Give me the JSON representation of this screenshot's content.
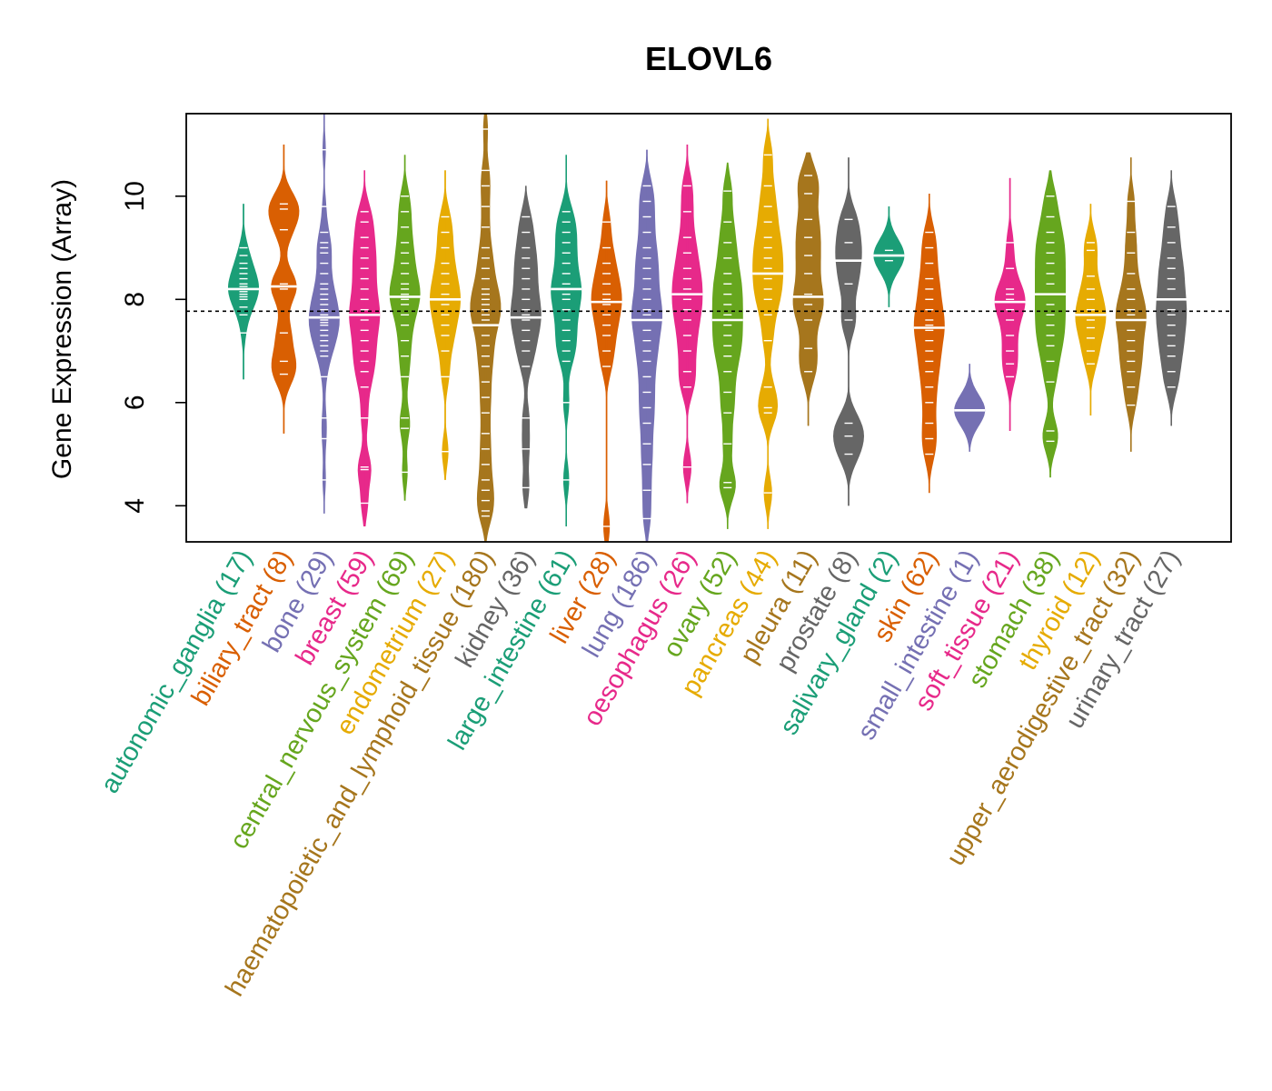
{
  "chart_data": {
    "type": "violin",
    "title": "ELOVL6",
    "ylabel": "Gene Expression (Array)",
    "xlabel": "",
    "ylim": [
      3.3,
      11.6
    ],
    "yticks": [
      4,
      6,
      8,
      10
    ],
    "reference_line": 7.77,
    "categories": [
      {
        "label": "autonomic_ganglia (17)",
        "color": "#1B9E77",
        "median": 8.2,
        "min": 6.45,
        "max": 9.85,
        "values": [
          7.35,
          7.7,
          7.85,
          8.0,
          8.05,
          8.1,
          8.15,
          8.2,
          8.2,
          8.25,
          8.3,
          8.4,
          8.5,
          8.6,
          8.7,
          8.85,
          9.0
        ]
      },
      {
        "label": "biliary_tract (8)",
        "color": "#D95F02",
        "median": 8.25,
        "min": 5.4,
        "max": 11.0,
        "values": [
          6.55,
          6.8,
          7.35,
          8.2,
          8.3,
          9.35,
          9.75,
          9.85
        ]
      },
      {
        "label": "bone (29)",
        "color": "#7570B3",
        "median": 7.65,
        "min": 3.85,
        "max": 11.6,
        "values": [
          4.5,
          5.3,
          5.7,
          6.5,
          6.9,
          7.0,
          7.1,
          7.2,
          7.3,
          7.4,
          7.5,
          7.55,
          7.6,
          7.65,
          7.7,
          7.8,
          7.9,
          8.0,
          8.1,
          8.2,
          8.3,
          8.5,
          8.7,
          8.9,
          9.0,
          9.1,
          9.3,
          9.8,
          10.9
        ]
      },
      {
        "label": "breast (59)",
        "color": "#E7298A",
        "median": 7.7,
        "min": 3.6,
        "max": 10.5,
        "values": [
          4.05,
          4.7,
          4.75,
          5.7,
          6.3,
          6.6,
          6.8,
          7.0,
          7.2,
          7.4,
          7.6,
          7.7,
          7.8,
          8.0,
          8.2,
          8.4,
          8.6,
          8.8,
          9.0,
          9.2,
          9.5,
          9.7
        ]
      },
      {
        "label": "central_nervous_system (69)",
        "color": "#66A61E",
        "median": 8.05,
        "min": 4.1,
        "max": 10.8,
        "values": [
          4.65,
          5.5,
          5.7,
          6.5,
          6.9,
          7.2,
          7.5,
          7.7,
          7.9,
          8.0,
          8.1,
          8.2,
          8.3,
          8.5,
          8.7,
          8.9,
          9.1,
          9.4,
          9.7,
          10.0
        ]
      },
      {
        "label": "endometrium (27)",
        "color": "#E6AB02",
        "median": 8.0,
        "min": 4.5,
        "max": 10.5,
        "values": [
          5.05,
          6.5,
          7.0,
          7.3,
          7.5,
          7.7,
          7.9,
          8.0,
          8.1,
          8.3,
          8.5,
          8.7,
          9.0,
          9.3,
          9.6
        ]
      },
      {
        "label": "haematopoietic_and_lymphoid_tissue (180)",
        "color": "#A6761D",
        "median": 7.5,
        "min": 3.3,
        "max": 11.6,
        "values": [
          3.8,
          3.9,
          4.1,
          4.3,
          4.5,
          4.8,
          5.1,
          5.4,
          5.8,
          6.1,
          6.4,
          6.7,
          6.9,
          7.1,
          7.3,
          7.5,
          7.6,
          7.7,
          7.8,
          7.9,
          8.0,
          8.1,
          8.2,
          8.4,
          8.6,
          8.8,
          9.0,
          9.4,
          9.8,
          10.2,
          10.5,
          11.3
        ]
      },
      {
        "label": "kidney (36)",
        "color": "#666666",
        "median": 7.65,
        "min": 3.95,
        "max": 10.2,
        "values": [
          4.35,
          5.1,
          5.7,
          6.7,
          7.0,
          7.2,
          7.4,
          7.6,
          7.7,
          7.8,
          8.0,
          8.2,
          8.4,
          8.6,
          8.8,
          9.0,
          9.3,
          9.6
        ]
      },
      {
        "label": "large_intestine (61)",
        "color": "#1B9E77",
        "median": 8.2,
        "min": 3.6,
        "max": 10.8,
        "values": [
          4.5,
          6.0,
          6.8,
          7.0,
          7.2,
          7.4,
          7.6,
          7.8,
          8.0,
          8.1,
          8.2,
          8.3,
          8.5,
          8.7,
          8.9,
          9.1,
          9.3,
          9.5,
          9.7
        ]
      },
      {
        "label": "liver (28)",
        "color": "#D95F02",
        "median": 7.95,
        "min": 3.3,
        "max": 10.3,
        "values": [
          3.6,
          6.7,
          7.0,
          7.3,
          7.5,
          7.7,
          7.9,
          8.0,
          8.1,
          8.3,
          8.5,
          8.7,
          9.0,
          9.5
        ]
      },
      {
        "label": "lung (186)",
        "color": "#7570B3",
        "median": 7.6,
        "min": 3.3,
        "max": 10.9,
        "values": [
          3.75,
          4.3,
          4.8,
          5.2,
          5.6,
          5.9,
          6.2,
          6.5,
          6.8,
          7.0,
          7.2,
          7.4,
          7.6,
          7.7,
          7.8,
          8.0,
          8.2,
          8.4,
          8.6,
          8.8,
          9.0,
          9.3,
          9.6,
          9.9,
          10.2
        ]
      },
      {
        "label": "oesophagus (26)",
        "color": "#E7298A",
        "median": 8.1,
        "min": 4.05,
        "max": 11.0,
        "values": [
          4.75,
          6.3,
          6.6,
          7.0,
          7.3,
          7.6,
          7.8,
          8.0,
          8.2,
          8.4,
          8.6,
          8.9,
          9.2,
          9.7,
          10.2
        ]
      },
      {
        "label": "ovary (52)",
        "color": "#66A61E",
        "median": 7.6,
        "min": 3.55,
        "max": 10.65,
        "values": [
          4.35,
          4.45,
          5.2,
          5.8,
          6.2,
          6.6,
          6.9,
          7.1,
          7.3,
          7.5,
          7.7,
          7.9,
          8.1,
          8.3,
          8.5,
          8.8,
          9.1,
          9.5,
          10.1
        ]
      },
      {
        "label": "pancreas (44)",
        "color": "#E6AB02",
        "median": 8.5,
        "min": 3.55,
        "max": 11.5,
        "values": [
          4.25,
          5.8,
          5.9,
          6.3,
          7.2,
          7.7,
          8.0,
          8.2,
          8.4,
          8.6,
          8.8,
          9.0,
          9.2,
          9.5,
          9.8,
          10.2,
          10.8
        ]
      },
      {
        "label": "pleura (11)",
        "color": "#A6761D",
        "median": 8.05,
        "min": 5.55,
        "max": 10.85,
        "values": [
          6.6,
          7.05,
          7.6,
          7.9,
          8.1,
          8.5,
          8.85,
          9.2,
          9.55,
          10.05,
          10.4
        ]
      },
      {
        "label": "prostate (8)",
        "color": "#666666",
        "median": 8.75,
        "min": 4.0,
        "max": 10.75,
        "values": [
          5.0,
          5.35,
          5.6,
          7.6,
          8.3,
          8.75,
          9.1,
          9.55
        ]
      },
      {
        "label": "salivary_gland (2)",
        "color": "#1B9E77",
        "median": 8.85,
        "min": 7.85,
        "max": 9.8,
        "values": [
          8.75,
          8.95
        ]
      },
      {
        "label": "skin (62)",
        "color": "#D95F02",
        "median": 7.45,
        "min": 4.25,
        "max": 10.05,
        "values": [
          5.0,
          5.3,
          5.6,
          6.0,
          6.3,
          6.6,
          6.8,
          7.0,
          7.2,
          7.4,
          7.5,
          7.6,
          7.8,
          8.0,
          8.2,
          8.4,
          8.7,
          9.0,
          9.3
        ]
      },
      {
        "label": "small_intestine (1)",
        "color": "#7570B3",
        "median": 5.85,
        "min": 5.05,
        "max": 6.75,
        "values": [
          5.85
        ]
      },
      {
        "label": "soft_tissue (21)",
        "color": "#E7298A",
        "median": 7.95,
        "min": 5.45,
        "max": 10.35,
        "values": [
          6.5,
          6.75,
          7.0,
          7.3,
          7.6,
          7.8,
          7.95,
          8.0,
          8.1,
          8.2,
          8.6,
          9.1
        ]
      },
      {
        "label": "stomach (38)",
        "color": "#66A61E",
        "median": 8.1,
        "min": 4.55,
        "max": 10.5,
        "values": [
          5.25,
          5.45,
          6.4,
          6.8,
          7.1,
          7.3,
          7.5,
          7.7,
          7.9,
          8.1,
          8.3,
          8.5,
          8.7,
          8.9,
          9.1,
          9.3,
          9.6,
          10.0
        ]
      },
      {
        "label": "thyroid (12)",
        "color": "#E6AB02",
        "median": 7.7,
        "min": 5.75,
        "max": 9.85,
        "values": [
          6.75,
          7.0,
          7.25,
          7.45,
          7.6,
          7.7,
          7.8,
          8.0,
          8.2,
          8.45,
          8.95,
          9.1
        ]
      },
      {
        "label": "upper_aerodigestive_tract (32)",
        "color": "#A6761D",
        "median": 7.6,
        "min": 5.05,
        "max": 10.75,
        "values": [
          5.95,
          6.3,
          6.6,
          6.8,
          7.0,
          7.2,
          7.4,
          7.6,
          7.7,
          7.8,
          8.0,
          8.2,
          8.5,
          8.9,
          9.3,
          9.9
        ]
      },
      {
        "label": "urinary_tract (27)",
        "color": "#666666",
        "median": 8.0,
        "min": 5.55,
        "max": 10.5,
        "values": [
          6.3,
          6.6,
          6.9,
          7.1,
          7.3,
          7.5,
          7.7,
          7.8,
          8.0,
          8.2,
          8.4,
          8.6,
          8.8,
          9.1,
          9.4,
          9.8
        ]
      }
    ]
  }
}
